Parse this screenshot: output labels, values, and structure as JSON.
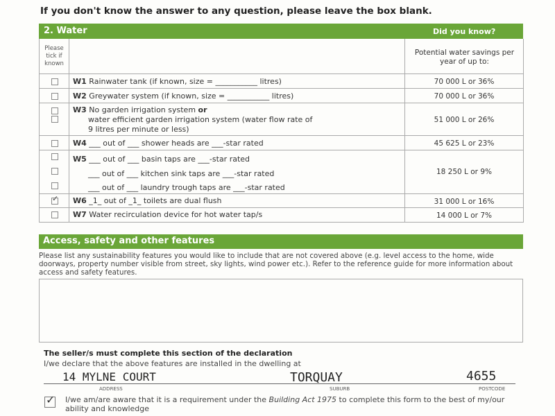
{
  "instruction": "If you don't know the answer to any question, please leave the box blank.",
  "water": {
    "title": "2. Water",
    "did_you_know": "Did you know?",
    "tick_header": "Please tick if known",
    "savings_header": "Potential water savings per year of up to:",
    "rows": [
      {
        "code": "W1",
        "text": "Rainwater tank (if known, size = ___________ litres)",
        "savings": "70 000 L or 36%",
        "checked": false
      },
      {
        "code": "W2",
        "text": "Greywater system (if known, size = ___________ litres)",
        "savings": "70 000 L or 36%",
        "checked": false
      },
      {
        "code": "W3",
        "text": "No garden irrigation system",
        "text_bold": "or",
        "text2": "water efficient garden irrigation system (water flow rate of",
        "text3": "9 litres per minute or less)",
        "savings": "51 000 L or 26%",
        "checked": false
      },
      {
        "code": "W4",
        "text": "___ out of ___ shower heads are ___-star rated",
        "savings": "45 625 L or 23%",
        "checked": false
      },
      {
        "code": "W5",
        "text": "___ out of ___ basin taps are ___-star rated",
        "text2": "___ out of ___ kitchen sink taps are ___-star rated",
        "text3": "___ out of ___ laundry trough taps are ___-star rated",
        "savings": "18 250 L or 9%",
        "checked": false
      },
      {
        "code": "W6",
        "text": "_1_ out of _1_ toilets are dual flush",
        "savings": "31 000 L or 16%",
        "checked": true
      },
      {
        "code": "W7",
        "text": "Water recirculation device for hot water tap/s",
        "savings": "14 000 L or 7%",
        "checked": false
      }
    ]
  },
  "access": {
    "title": "Access, safety and other features",
    "description": "Please list any sustainability features you would like to include that are not covered above (e.g. level access to the home, wide doorways, property number visible from street, sky lights, wind power etc.). Refer to the reference guide for more information about access and safety features.",
    "value": ""
  },
  "declaration": {
    "heading": "The seller/s must complete this section of the declaration",
    "intro": "I/we declare that the above features are installed in the dwelling at",
    "address": "14 MYLNE COURT",
    "suburb": "TORQUAY",
    "postcode": "4655",
    "address_label": "ADDRESS",
    "suburb_label": "SUBURB",
    "postcode_label": "POSTCODE",
    "aware_text_1": "I/we am/are aware that it is a requirement under the ",
    "aware_italic": "Building Act 1975",
    "aware_text_2": " to complete this form to the best of my/our ability and knowledge",
    "aware_checked": true
  },
  "colors": {
    "green": "#6aa638"
  }
}
